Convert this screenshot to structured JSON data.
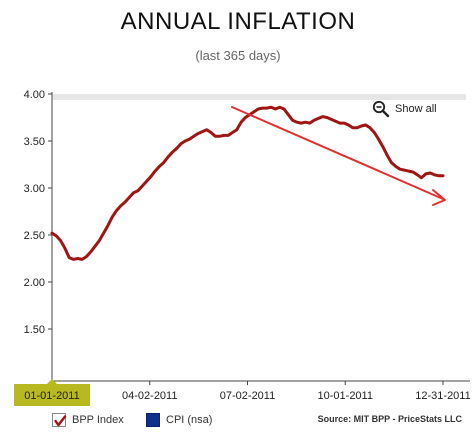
{
  "header": {
    "title": "ANNUAL INFLATION",
    "subtitle": "(last 365 days)"
  },
  "controls": {
    "show_all_label": "Show all",
    "show_all_icon": "zoom-out-icon"
  },
  "legend": {
    "items": [
      {
        "label": "BPP Index",
        "color": "#a01414",
        "checked": true
      },
      {
        "label": "CPI (nsa)",
        "color": "#0f2f8c",
        "checked": false
      }
    ],
    "source": "Source: MIT BPP - PriceStats LLC"
  },
  "annotation": {
    "type": "arrow",
    "color": "#e03030"
  },
  "chart_data": {
    "type": "line",
    "x_tick_labels": [
      "01-01-2011",
      "04-02-2011",
      "07-02-2011",
      "10-01-2011",
      "12-31-2011"
    ],
    "x_range": [
      "2011-01-01",
      "2011-12-31"
    ],
    "y_tick_labels": [
      "1.50",
      "2.00",
      "2.50",
      "3.00",
      "3.50",
      "4.00"
    ],
    "y_ticks": [
      1.5,
      2.0,
      2.5,
      3.0,
      3.5,
      4.0
    ],
    "ylim": [
      1.0,
      4.0
    ],
    "highlighted_x_label": "01-01-2011",
    "grid": false,
    "series": [
      {
        "name": "BPP Index",
        "color": "#a01414",
        "points": [
          [
            "2011-01-01",
            2.52
          ],
          [
            "2011-01-05",
            2.49
          ],
          [
            "2011-01-09",
            2.44
          ],
          [
            "2011-01-13",
            2.36
          ],
          [
            "2011-01-17",
            2.26
          ],
          [
            "2011-01-21",
            2.24
          ],
          [
            "2011-01-25",
            2.25
          ],
          [
            "2011-01-29",
            2.24
          ],
          [
            "2011-02-02",
            2.27
          ],
          [
            "2011-02-06",
            2.32
          ],
          [
            "2011-02-10",
            2.38
          ],
          [
            "2011-02-14",
            2.44
          ],
          [
            "2011-02-18",
            2.52
          ],
          [
            "2011-02-22",
            2.6
          ],
          [
            "2011-02-26",
            2.69
          ],
          [
            "2011-03-02",
            2.76
          ],
          [
            "2011-03-06",
            2.81
          ],
          [
            "2011-03-10",
            2.85
          ],
          [
            "2011-03-14",
            2.9
          ],
          [
            "2011-03-18",
            2.95
          ],
          [
            "2011-03-22",
            2.97
          ],
          [
            "2011-03-26",
            3.02
          ],
          [
            "2011-03-30",
            3.07
          ],
          [
            "2011-04-03",
            3.12
          ],
          [
            "2011-04-07",
            3.18
          ],
          [
            "2011-04-11",
            3.23
          ],
          [
            "2011-04-15",
            3.27
          ],
          [
            "2011-04-19",
            3.33
          ],
          [
            "2011-04-23",
            3.38
          ],
          [
            "2011-04-27",
            3.42
          ],
          [
            "2011-05-01",
            3.47
          ],
          [
            "2011-05-05",
            3.5
          ],
          [
            "2011-05-09",
            3.52
          ],
          [
            "2011-05-13",
            3.55
          ],
          [
            "2011-05-17",
            3.58
          ],
          [
            "2011-05-21",
            3.6
          ],
          [
            "2011-05-25",
            3.62
          ],
          [
            "2011-05-29",
            3.59
          ],
          [
            "2011-06-02",
            3.55
          ],
          [
            "2011-06-06",
            3.55
          ],
          [
            "2011-06-10",
            3.56
          ],
          [
            "2011-06-14",
            3.56
          ],
          [
            "2011-06-18",
            3.59
          ],
          [
            "2011-06-22",
            3.62
          ],
          [
            "2011-06-26",
            3.7
          ],
          [
            "2011-06-30",
            3.75
          ],
          [
            "2011-07-04",
            3.78
          ],
          [
            "2011-07-08",
            3.81
          ],
          [
            "2011-07-12",
            3.84
          ],
          [
            "2011-07-16",
            3.85
          ],
          [
            "2011-07-20",
            3.85
          ],
          [
            "2011-07-24",
            3.86
          ],
          [
            "2011-07-28",
            3.84
          ],
          [
            "2011-08-01",
            3.86
          ],
          [
            "2011-08-05",
            3.84
          ],
          [
            "2011-08-09",
            3.78
          ],
          [
            "2011-08-13",
            3.72
          ],
          [
            "2011-08-17",
            3.7
          ],
          [
            "2011-08-21",
            3.69
          ],
          [
            "2011-08-25",
            3.7
          ],
          [
            "2011-08-29",
            3.69
          ],
          [
            "2011-09-02",
            3.72
          ],
          [
            "2011-09-06",
            3.74
          ],
          [
            "2011-09-10",
            3.76
          ],
          [
            "2011-09-14",
            3.75
          ],
          [
            "2011-09-18",
            3.73
          ],
          [
            "2011-09-22",
            3.71
          ],
          [
            "2011-09-26",
            3.69
          ],
          [
            "2011-09-30",
            3.69
          ],
          [
            "2011-10-04",
            3.67
          ],
          [
            "2011-10-08",
            3.64
          ],
          [
            "2011-10-12",
            3.64
          ],
          [
            "2011-10-16",
            3.66
          ],
          [
            "2011-10-20",
            3.67
          ],
          [
            "2011-10-24",
            3.64
          ],
          [
            "2011-10-28",
            3.59
          ],
          [
            "2011-11-01",
            3.52
          ],
          [
            "2011-11-05",
            3.44
          ],
          [
            "2011-11-09",
            3.35
          ],
          [
            "2011-11-13",
            3.27
          ],
          [
            "2011-11-17",
            3.23
          ],
          [
            "2011-11-21",
            3.2
          ],
          [
            "2011-11-25",
            3.19
          ],
          [
            "2011-11-29",
            3.18
          ],
          [
            "2011-12-03",
            3.17
          ],
          [
            "2011-12-07",
            3.14
          ],
          [
            "2011-12-11",
            3.11
          ],
          [
            "2011-12-15",
            3.15
          ],
          [
            "2011-12-19",
            3.16
          ],
          [
            "2011-12-23",
            3.14
          ],
          [
            "2011-12-27",
            3.13
          ],
          [
            "2011-12-31",
            3.13
          ]
        ]
      }
    ]
  }
}
